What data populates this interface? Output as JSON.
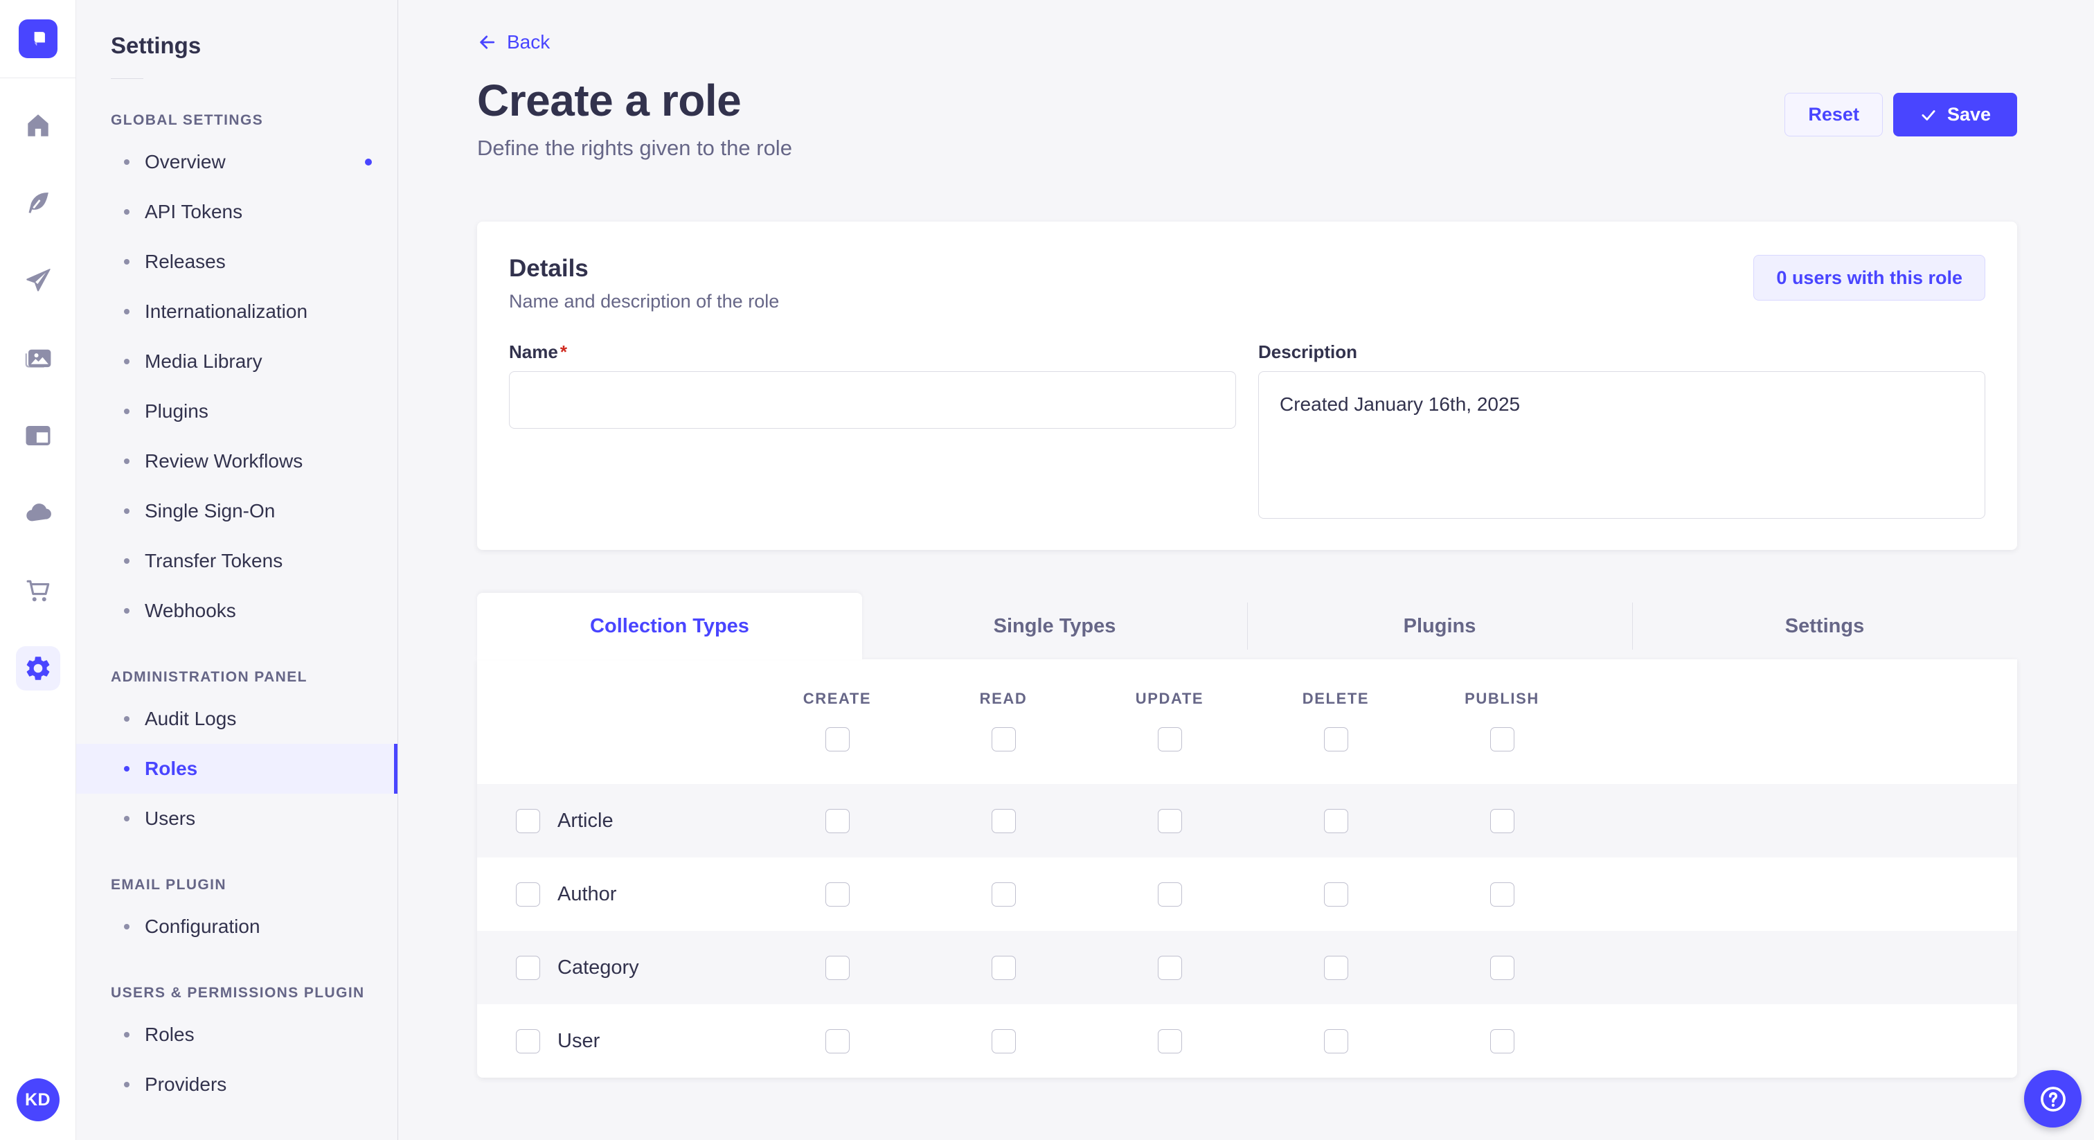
{
  "app": {
    "avatar_initials": "KD"
  },
  "rail_icons": [
    "strapi-logo",
    "home",
    "feather",
    "paper-plane",
    "media-library",
    "content-type-builder",
    "cloud",
    "marketplace",
    "settings"
  ],
  "subnav": {
    "title": "Settings",
    "sections": [
      {
        "label": "GLOBAL SETTINGS",
        "items": [
          {
            "label": "Overview",
            "notification": true
          },
          {
            "label": "API Tokens"
          },
          {
            "label": "Releases"
          },
          {
            "label": "Internationalization"
          },
          {
            "label": "Media Library"
          },
          {
            "label": "Plugins"
          },
          {
            "label": "Review Workflows"
          },
          {
            "label": "Single Sign-On"
          },
          {
            "label": "Transfer Tokens"
          },
          {
            "label": "Webhooks"
          }
        ]
      },
      {
        "label": "ADMINISTRATION PANEL",
        "items": [
          {
            "label": "Audit Logs"
          },
          {
            "label": "Roles",
            "active": true
          },
          {
            "label": "Users"
          }
        ]
      },
      {
        "label": "EMAIL PLUGIN",
        "items": [
          {
            "label": "Configuration"
          }
        ]
      },
      {
        "label": "USERS & PERMISSIONS PLUGIN",
        "items": [
          {
            "label": "Roles"
          },
          {
            "label": "Providers"
          }
        ]
      }
    ]
  },
  "header": {
    "back_label": "Back",
    "title": "Create a role",
    "subtitle": "Define the rights given to the role",
    "reset_label": "Reset",
    "save_label": "Save"
  },
  "details": {
    "heading": "Details",
    "subheading": "Name and description of the role",
    "users_button": "0 users with this role",
    "name_label": "Name",
    "required_mark": "*",
    "name_value": "",
    "description_label": "Description",
    "description_value": "Created January 16th, 2025"
  },
  "tabs": [
    {
      "label": "Collection Types",
      "active": true
    },
    {
      "label": "Single Types"
    },
    {
      "label": "Plugins"
    },
    {
      "label": "Settings"
    }
  ],
  "permissions_table": {
    "columns": [
      "CREATE",
      "READ",
      "UPDATE",
      "DELETE",
      "PUBLISH"
    ],
    "rows": [
      {
        "label": "Article"
      },
      {
        "label": "Author"
      },
      {
        "label": "Category"
      },
      {
        "label": "User"
      }
    ],
    "all_unchecked": true
  },
  "colors": {
    "primary": "#4945ff",
    "primary_bg": "#f0f0ff",
    "primary_border": "#d9d8ff",
    "page_bg": "#f6f6f9",
    "text": "#32324d",
    "text_muted": "#666687",
    "border": "#dcdce4",
    "required": "#d02b20"
  }
}
